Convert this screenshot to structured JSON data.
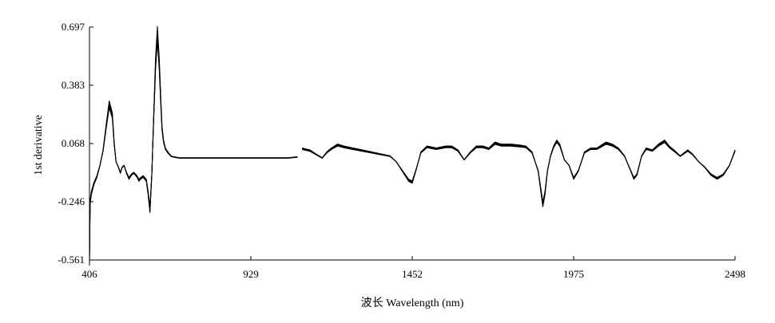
{
  "chart_data": {
    "type": "line",
    "xlabel": "波长 Wavelength (nm)",
    "ylabel": "1st derivative",
    "xlim": [
      406,
      2498
    ],
    "ylim": [
      -0.561,
      0.697
    ],
    "xticks": [
      406,
      929,
      1452,
      1975,
      2498
    ],
    "yticks": [
      0.697,
      0.383,
      0.068,
      -0.246,
      -0.561
    ],
    "xtick_labels": [
      "406",
      "929",
      "1452",
      "1975",
      "2498"
    ],
    "ytick_labels": [
      "0.697",
      "0.383",
      "0.068",
      "-0.246",
      "-0.561"
    ],
    "grid": false,
    "legend": "none",
    "series_band_count": 5,
    "segments": [
      {
        "x": [
          406,
          408,
          412,
          420,
          430,
          440,
          450,
          460,
          470,
          480,
          486,
          492,
          500,
          506,
          512,
          518,
          526,
          534,
          542,
          550,
          560,
          566,
          572,
          580,
          590,
          596,
          602,
          608,
          614,
          620,
          626,
          632,
          637,
          641,
          646,
          652,
          660,
          670,
          680,
          690,
          700,
          750,
          800,
          850,
          900,
          950,
          1000,
          1050,
          1080
        ],
        "y": [
          -0.56,
          -0.25,
          -0.2,
          -0.15,
          -0.11,
          -0.05,
          0.03,
          0.16,
          0.28,
          0.22,
          0.07,
          -0.03,
          -0.06,
          -0.09,
          -0.06,
          -0.05,
          -0.09,
          -0.12,
          -0.1,
          -0.09,
          -0.11,
          -0.13,
          -0.12,
          -0.11,
          -0.13,
          -0.2,
          -0.29,
          -0.1,
          0.2,
          0.5,
          0.66,
          0.5,
          0.3,
          0.15,
          0.08,
          0.04,
          0.02,
          0.0,
          -0.005,
          -0.008,
          -0.01,
          -0.01,
          -0.01,
          -0.01,
          -0.01,
          -0.01,
          -0.01,
          -0.01,
          -0.005
        ]
      },
      {
        "x": [
          1095,
          1120,
          1140,
          1160,
          1175,
          1190,
          1210,
          1230,
          1260,
          1290,
          1320,
          1350,
          1380,
          1400,
          1420,
          1440,
          1452,
          1465,
          1480,
          1500,
          1530,
          1560,
          1580,
          1600,
          1620,
          1640,
          1660,
          1680,
          1700,
          1720,
          1740,
          1770,
          1800,
          1820,
          1840,
          1860,
          1875,
          1882,
          1890,
          1900,
          1910,
          1920,
          1930,
          1945,
          1960,
          1975,
          1990,
          2010,
          2030,
          2050,
          2070,
          2080,
          2100,
          2120,
          2140,
          2160,
          2170,
          2180,
          2195,
          2210,
          2230,
          2250,
          2270,
          2285,
          2300,
          2320,
          2345,
          2360,
          2380,
          2400,
          2420,
          2440,
          2460,
          2480,
          2498
        ],
        "y": [
          0.04,
          0.03,
          0.01,
          -0.01,
          0.02,
          0.04,
          0.06,
          0.05,
          0.04,
          0.03,
          0.02,
          0.01,
          0.0,
          -0.03,
          -0.08,
          -0.13,
          -0.14,
          -0.07,
          0.02,
          0.05,
          0.04,
          0.05,
          0.05,
          0.03,
          -0.02,
          0.02,
          0.05,
          0.05,
          0.04,
          0.07,
          0.06,
          0.06,
          0.055,
          0.05,
          0.02,
          -0.08,
          -0.26,
          -0.2,
          -0.08,
          0.0,
          0.05,
          0.08,
          0.06,
          -0.02,
          -0.05,
          -0.12,
          -0.08,
          0.02,
          0.04,
          0.04,
          0.06,
          0.07,
          0.06,
          0.04,
          0.0,
          -0.08,
          -0.12,
          -0.1,
          0.0,
          0.04,
          0.03,
          0.06,
          0.08,
          0.05,
          0.03,
          0.0,
          0.03,
          0.01,
          -0.03,
          -0.06,
          -0.1,
          -0.12,
          -0.1,
          -0.05,
          0.03
        ]
      }
    ]
  }
}
